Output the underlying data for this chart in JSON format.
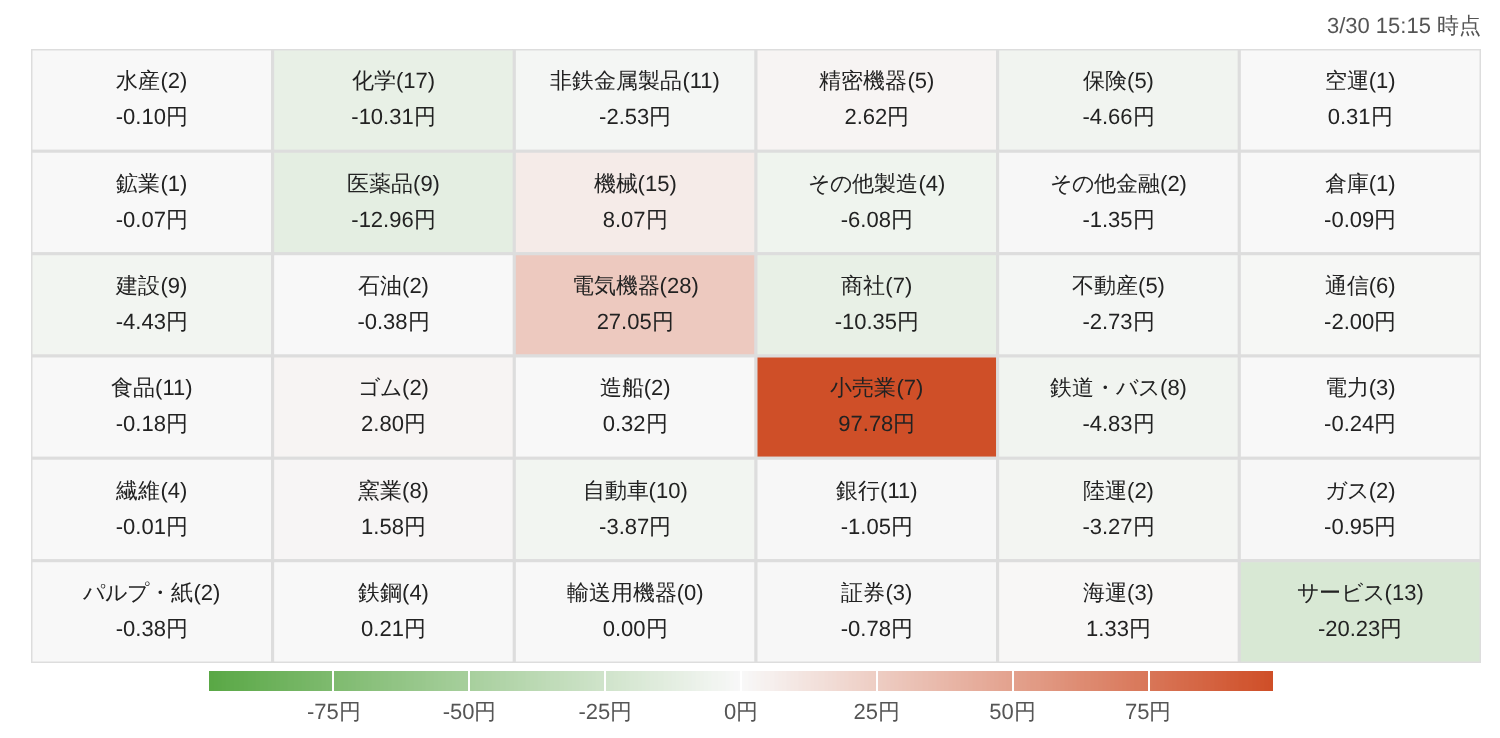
{
  "chart_data": {
    "type": "heatmap",
    "subtitle": "3/30 15:15 時点",
    "categories": [
      null,
      null,
      null,
      null,
      null,
      null
    ],
    "y_categories": [
      null,
      null,
      null,
      null,
      null,
      null
    ],
    "cells": [
      [
        -0.1,
        -10.31,
        -2.53,
        2.62,
        -4.66,
        0.31
      ],
      [
        -0.07,
        -12.96,
        8.07,
        -6.08,
        -1.35,
        -0.09
      ],
      [
        -4.43,
        -0.38,
        27.05,
        -10.35,
        -2.73,
        -2.0
      ],
      [
        -0.18,
        2.8,
        0.32,
        97.78,
        -4.83,
        -0.24
      ],
      [
        -0.01,
        1.58,
        -3.87,
        -1.05,
        -3.27,
        -0.95
      ],
      [
        -0.38,
        0.21,
        0.0,
        -0.78,
        1.33,
        -20.23
      ]
    ],
    "cell_labels": [
      [
        "水産(2)\n-0.10円",
        "化学(17)\n-10.31円",
        "非鉄金属製品(11)\n-2.53円",
        "精密機器(5)\n2.62円",
        "保険(5)\n-4.66円",
        "空運(1)\n0.31円"
      ],
      [
        "鉱業(1)\n-0.07円",
        "医薬品(9)\n-12.96円",
        "機械(15)\n8.07円",
        "その他製造(4)\n-6.08円",
        "その他金融(2)\n-1.35円",
        "倉庫(1)\n-0.09円"
      ],
      [
        "建設(9)\n-4.43円",
        "石油(2)\n-0.38円",
        "電気機器(28)\n27.05円",
        "商社(7)\n-10.35円",
        "不動産(5)\n-2.73円",
        "通信(6)\n-2.00円"
      ],
      [
        "食品(11)\n-0.18円",
        "ゴム(2)\n2.80円",
        "造船(2)\n0.32円",
        "小売業(7)\n97.78円",
        "鉄道・バス(8)\n-4.83円",
        "電力(3)\n-0.24円"
      ],
      [
        "繊維(4)\n-0.01円",
        "窯業(8)\n1.58円",
        "自動車(10)\n-3.87円",
        "銀行(11)\n-1.05円",
        "陸運(2)\n-3.27円",
        "ガス(2)\n-0.95円"
      ],
      [
        "パルプ・紙(2)\n-0.38円",
        "鉄鋼(4)\n0.21円",
        "輸送用機器(0)\n0.00円",
        "証券(3)\n-0.78円",
        "海運(3)\n1.33円",
        "サービス(13)\n-20.23円"
      ]
    ],
    "clim": [
      -98,
      98
    ],
    "cticks": [
      {
        "value": -75,
        "label": "-75円"
      },
      {
        "value": -50,
        "label": "-50円"
      },
      {
        "value": -25,
        "label": "-25円"
      },
      {
        "value": 0,
        "label": "0円"
      },
      {
        "value": 25,
        "label": "25円"
      },
      {
        "value": 50,
        "label": "50円"
      },
      {
        "value": 75,
        "label": "75円"
      }
    ]
  }
}
